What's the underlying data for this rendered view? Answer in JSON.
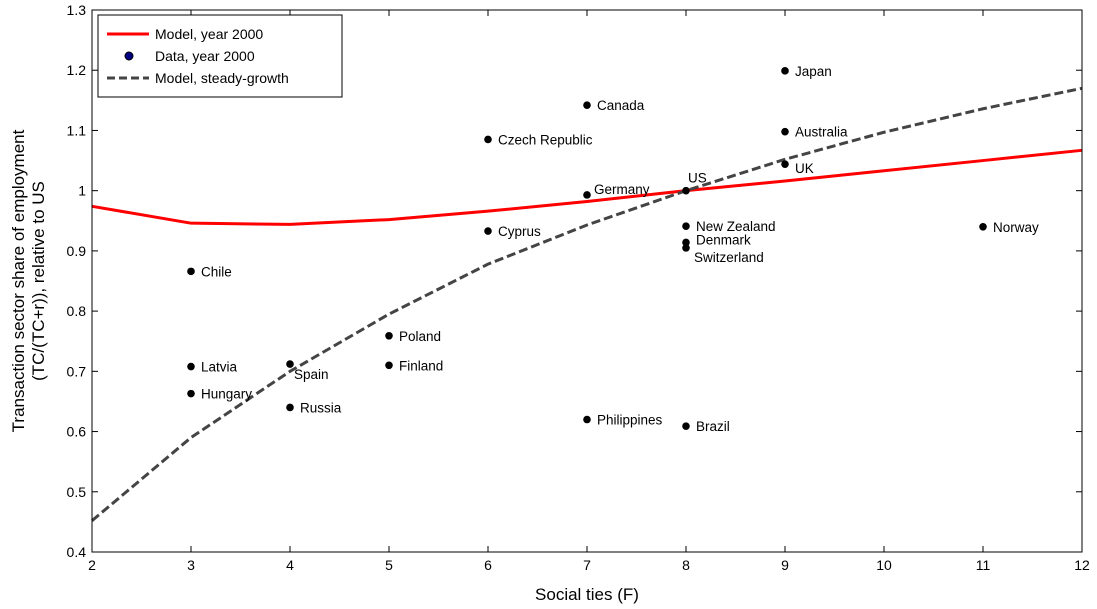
{
  "chart_data": {
    "type": "scatter",
    "title": "",
    "xlabel": "Social ties (F)",
    "ylabel_line1": "Transaction sector share of employment",
    "ylabel_line2": "(TC/(TC+r)), relative to US",
    "xlim": [
      2,
      12
    ],
    "ylim": [
      0.4,
      1.3
    ],
    "x_ticks": [
      "2",
      "3",
      "4",
      "5",
      "6",
      "7",
      "8",
      "9",
      "10",
      "11",
      "12"
    ],
    "y_ticks": [
      "0.4",
      "0.5",
      "0.6",
      "0.7",
      "0.8",
      "0.9",
      "1",
      "1.1",
      "1.2",
      "1.3"
    ],
    "grid": false,
    "legend_position": "top-left",
    "series": [
      {
        "name": "Model, year 2000",
        "kind": "line",
        "color": "#ff0000",
        "dash": "solid",
        "x": [
          2,
          3,
          4,
          5,
          6,
          7,
          8,
          9,
          10,
          11,
          12
        ],
        "y": [
          0.974,
          0.946,
          0.944,
          0.952,
          0.966,
          0.982,
          1.0,
          1.016,
          1.033,
          1.05,
          1.067
        ]
      },
      {
        "name": "Data, year 2000",
        "kind": "scatter",
        "color": "#000000",
        "legend_marker_color": "#000080",
        "points": [
          {
            "label": "Chile",
            "x": 3,
            "y": 0.866
          },
          {
            "label": "Latvia",
            "x": 3,
            "y": 0.708
          },
          {
            "label": "Hungary",
            "x": 3,
            "y": 0.663
          },
          {
            "label": "Spain",
            "x": 4,
            "y": 0.712
          },
          {
            "label": "Russia",
            "x": 4,
            "y": 0.64
          },
          {
            "label": "Poland",
            "x": 5,
            "y": 0.759
          },
          {
            "label": "Finland",
            "x": 5,
            "y": 0.71
          },
          {
            "label": "Czech Republic",
            "x": 6,
            "y": 1.085
          },
          {
            "label": "Cyprus",
            "x": 6,
            "y": 0.933
          },
          {
            "label": "Canada",
            "x": 7,
            "y": 1.142
          },
          {
            "label": "Germany",
            "x": 7,
            "y": 0.993
          },
          {
            "label": "Philippines",
            "x": 7,
            "y": 0.62
          },
          {
            "label": "US",
            "x": 8,
            "y": 1.0
          },
          {
            "label": "New Zealand",
            "x": 8,
            "y": 0.941
          },
          {
            "label": "Denmark",
            "x": 8,
            "y": 0.914
          },
          {
            "label": "Switzerland",
            "x": 8,
            "y": 0.905
          },
          {
            "label": "Brazil",
            "x": 8,
            "y": 0.609
          },
          {
            "label": "Japan",
            "x": 9,
            "y": 1.199
          },
          {
            "label": "Australia",
            "x": 9,
            "y": 1.098
          },
          {
            "label": "UK",
            "x": 9,
            "y": 1.044
          },
          {
            "label": "Norway",
            "x": 11,
            "y": 0.94
          }
        ]
      },
      {
        "name": "Model, steady-growth",
        "kind": "line",
        "color": "#444444",
        "dash": "dashed",
        "x": [
          2,
          3,
          4,
          5,
          6,
          7,
          8,
          9,
          10,
          11,
          12
        ],
        "y": [
          0.452,
          0.59,
          0.7,
          0.795,
          0.878,
          0.943,
          1.0,
          1.052,
          1.097,
          1.136,
          1.17
        ]
      }
    ]
  }
}
